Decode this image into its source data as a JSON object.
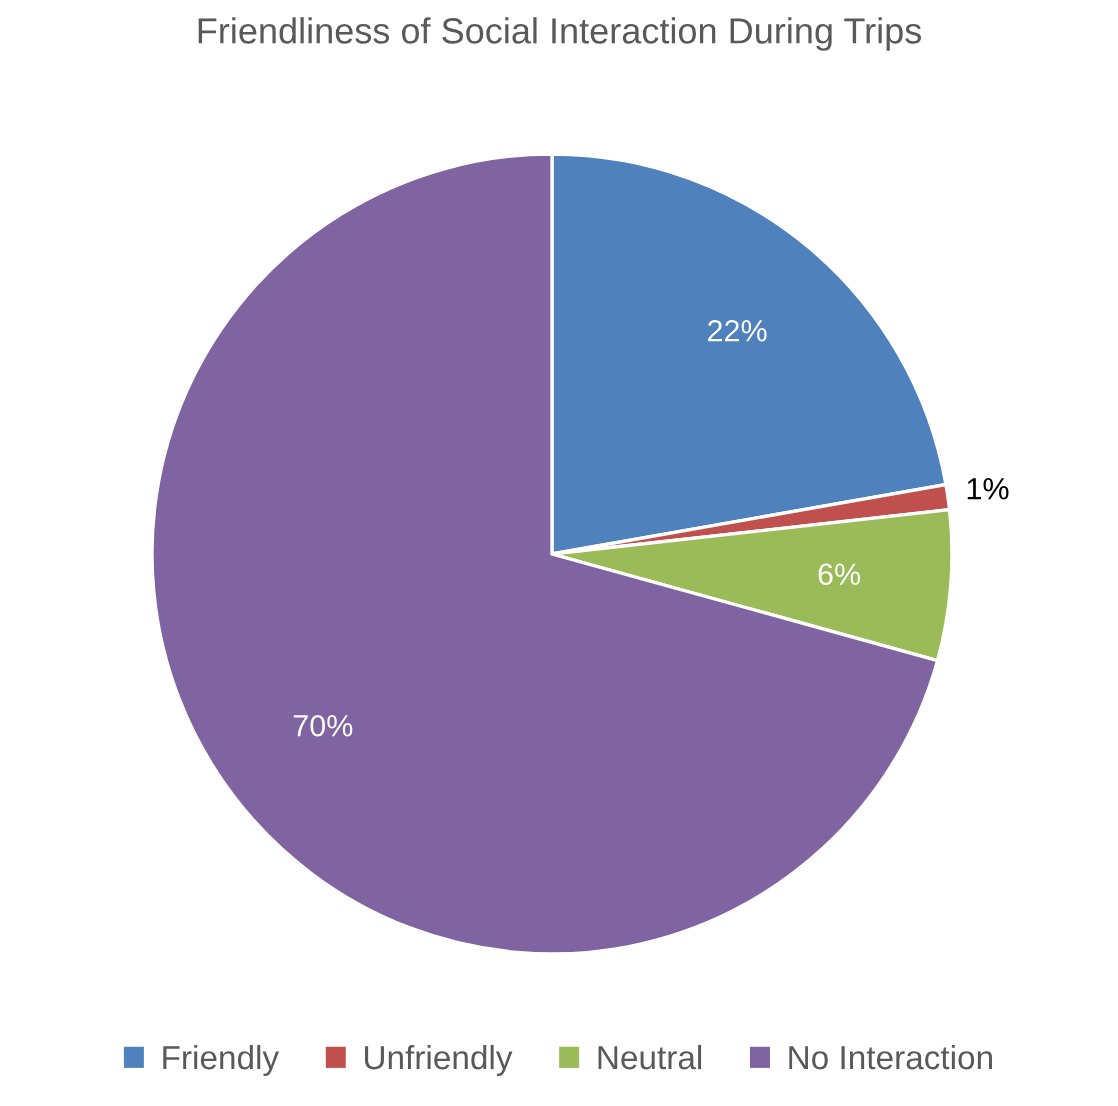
{
  "chart_data": {
    "type": "pie",
    "title": "Friendliness of Social Interaction During Trips",
    "categories": [
      "Friendly",
      "Unfriendly",
      "Neutral",
      "No Interaction"
    ],
    "values": [
      22,
      1,
      6,
      70
    ],
    "colors": [
      "#4f81bd",
      "#c0504d",
      "#9bbb59",
      "#8064a2"
    ],
    "value_labels": [
      "22%",
      "1%",
      "6%",
      "70%"
    ],
    "legend": "bottom"
  }
}
